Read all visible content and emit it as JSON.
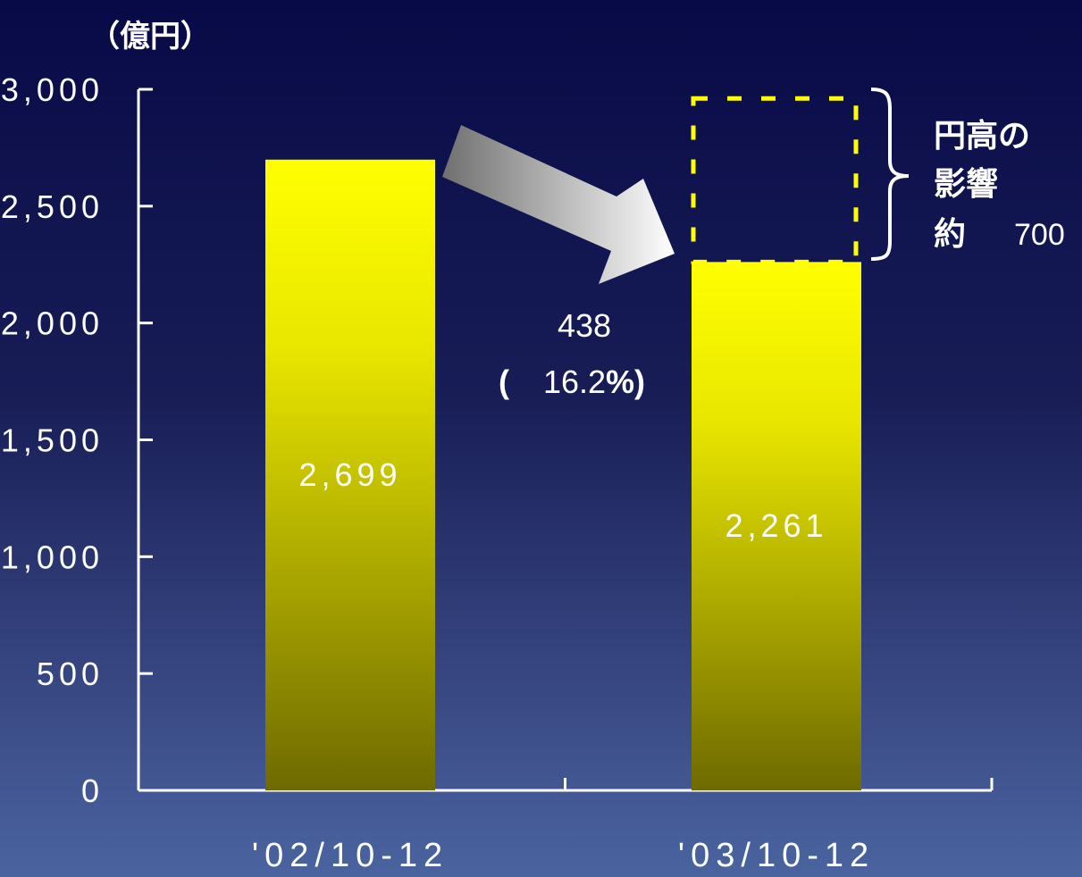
{
  "chart_data": {
    "type": "bar",
    "unit_label": "（億円）",
    "categories": [
      "'02/10-12",
      "'03/10-12"
    ],
    "values": [
      2699,
      2261
    ],
    "value_labels": [
      "2,699",
      "2,261"
    ],
    "ylim": [
      0,
      3000
    ],
    "yticks": [
      0,
      500,
      1000,
      1500,
      2000,
      2500,
      3000
    ],
    "ytick_labels": [
      "0",
      "500",
      "1,000",
      "1,500",
      "2,000",
      "2,500",
      "3,000"
    ],
    "ghost_bar": {
      "category_index": 1,
      "from": 2261,
      "to": 2961
    },
    "change": {
      "amount": "438",
      "percent_open": "(",
      "percent": "16.2",
      "percent_sign": "%",
      "percent_close": ")"
    },
    "annotation": {
      "line1": "円高の",
      "line2": "影響",
      "prefix": "約",
      "value": "700"
    },
    "colors": {
      "bar_top": "#ffff00",
      "bar_bottom": "#6e6a00",
      "ghost": "#ffff00",
      "axis": "#ffffff",
      "arrow_start": "#6f6f6f",
      "arrow_end": "#ffffff"
    },
    "grid": false
  }
}
